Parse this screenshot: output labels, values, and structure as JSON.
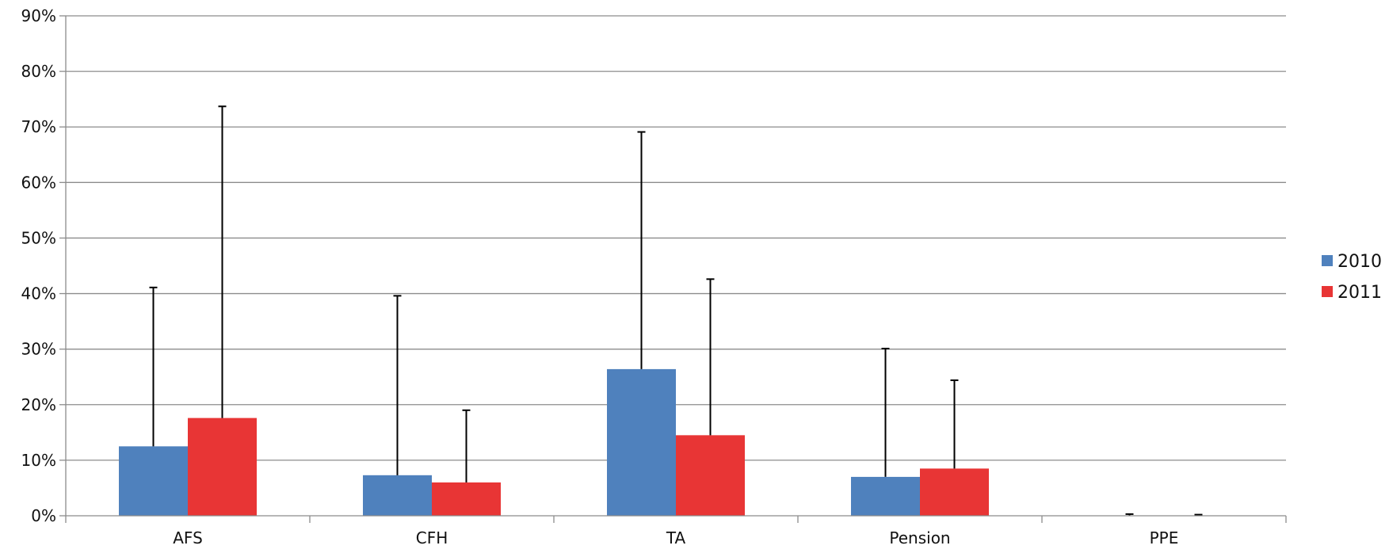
{
  "chart_data": {
    "type": "bar",
    "categories": [
      "AFS",
      "CFH",
      "TA",
      "Pension",
      "PPE"
    ],
    "series": [
      {
        "name": "2010",
        "color": "#4f81bd",
        "values": [
          12.5,
          7.3,
          26.4,
          7.0,
          0.0
        ],
        "error_upper": [
          41.1,
          39.6,
          69.1,
          30.1,
          0.3
        ]
      },
      {
        "name": "2011",
        "color": "#e83535",
        "values": [
          17.6,
          6.0,
          14.5,
          8.5,
          0.0
        ],
        "error_upper": [
          73.7,
          19.0,
          42.6,
          24.4,
          0.2
        ]
      }
    ],
    "ylim": [
      0,
      90
    ],
    "yticks": [
      0,
      10,
      20,
      30,
      40,
      50,
      60,
      70,
      80,
      90
    ],
    "ytick_labels": [
      "0%",
      "10%",
      "20%",
      "30%",
      "40%",
      "50%",
      "60%",
      "70%",
      "80%",
      "90%"
    ],
    "grid": true,
    "legend_position": "right"
  }
}
